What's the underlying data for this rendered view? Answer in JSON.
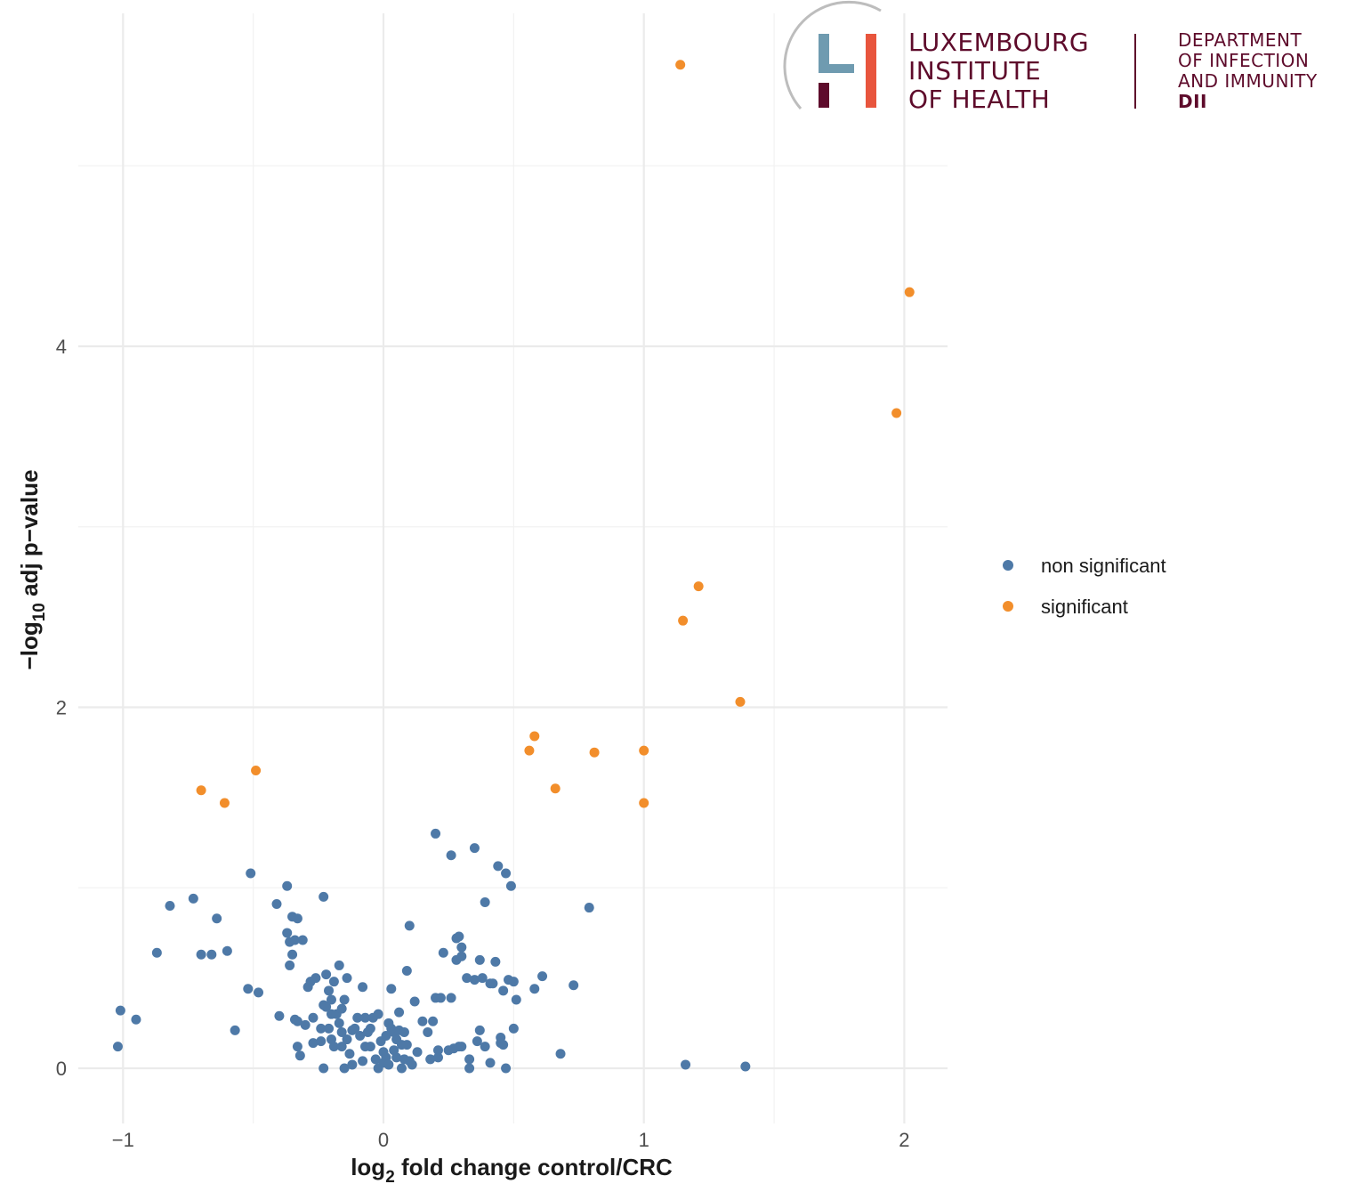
{
  "logo": {
    "org_lines": [
      "LUXEMBOURG",
      "INSTITUTE",
      "OF HEALTH"
    ],
    "dept_lines": [
      "DEPARTMENT",
      "OF INFECTION",
      "AND IMMUNITY"
    ],
    "dept_abbr": "DII",
    "colors": {
      "text": "#5e0b2b",
      "bar_blue": "#6f9bb0",
      "bar_red": "#e8553d",
      "bar_dark": "#5e0b2b",
      "arc": "#bdbdbd"
    }
  },
  "chart_data": {
    "type": "scatter",
    "title": "",
    "xlabel_parts": {
      "pre": "log",
      "sub": "2",
      "post": " fold change control/CRC"
    },
    "ylabel_parts": {
      "pre": "−log",
      "sub": "10",
      "post": " adj p−value"
    },
    "xlim": [
      -1.17,
      2.17
    ],
    "ylim": [
      -0.3,
      5.6
    ],
    "x_ticks": [
      -1,
      0,
      1,
      2
    ],
    "x_tick_labels": [
      "−1",
      "0",
      "1",
      "2"
    ],
    "y_ticks": [
      0,
      2,
      4
    ],
    "y_tick_labels": [
      "0",
      "2",
      "4"
    ],
    "grid": true,
    "legend_position": "right",
    "series": [
      {
        "name": "non significant",
        "color": "#4e79a7",
        "points": [
          [
            -1.02,
            0.12
          ],
          [
            -1.01,
            0.32
          ],
          [
            -0.95,
            0.27
          ],
          [
            -0.87,
            0.64
          ],
          [
            -0.82,
            0.9
          ],
          [
            -0.73,
            0.94
          ],
          [
            -0.7,
            0.63
          ],
          [
            -0.66,
            0.63
          ],
          [
            -0.64,
            0.83
          ],
          [
            -0.6,
            0.65
          ],
          [
            -0.57,
            0.21
          ],
          [
            -0.52,
            0.44
          ],
          [
            -0.51,
            1.08
          ],
          [
            -0.48,
            0.42
          ],
          [
            -0.41,
            0.91
          ],
          [
            -0.4,
            0.29
          ],
          [
            -0.37,
            1.01
          ],
          [
            -0.37,
            0.75
          ],
          [
            -0.36,
            0.7
          ],
          [
            -0.36,
            0.57
          ],
          [
            -0.35,
            0.63
          ],
          [
            -0.35,
            0.84
          ],
          [
            -0.34,
            0.27
          ],
          [
            -0.34,
            0.71
          ],
          [
            -0.33,
            0.12
          ],
          [
            -0.33,
            0.26
          ],
          [
            -0.33,
            0.83
          ],
          [
            -0.32,
            0.07
          ],
          [
            -0.31,
            0.71
          ],
          [
            -0.3,
            0.24
          ],
          [
            -0.29,
            0.45
          ],
          [
            -0.28,
            0.48
          ],
          [
            -0.27,
            0.28
          ],
          [
            -0.27,
            0.14
          ],
          [
            -0.26,
            0.5
          ],
          [
            -0.24,
            0.15
          ],
          [
            -0.24,
            0.22
          ],
          [
            -0.23,
            0.35
          ],
          [
            -0.23,
            0.95
          ],
          [
            -0.23,
            0.0
          ],
          [
            -0.22,
            0.52
          ],
          [
            -0.22,
            0.34
          ],
          [
            -0.21,
            0.22
          ],
          [
            -0.21,
            0.43
          ],
          [
            -0.2,
            0.16
          ],
          [
            -0.2,
            0.3
          ],
          [
            -0.2,
            0.38
          ],
          [
            -0.19,
            0.48
          ],
          [
            -0.19,
            0.12
          ],
          [
            -0.18,
            0.3
          ],
          [
            -0.17,
            0.57
          ],
          [
            -0.17,
            0.25
          ],
          [
            -0.16,
            0.33
          ],
          [
            -0.16,
            0.12
          ],
          [
            -0.16,
            0.2
          ],
          [
            -0.15,
            0.38
          ],
          [
            -0.15,
            0.0
          ],
          [
            -0.14,
            0.5
          ],
          [
            -0.14,
            0.16
          ],
          [
            -0.13,
            0.08
          ],
          [
            -0.12,
            0.21
          ],
          [
            -0.12,
            0.02
          ],
          [
            -0.11,
            0.22
          ],
          [
            -0.1,
            0.28
          ],
          [
            -0.09,
            0.18
          ],
          [
            -0.08,
            0.04
          ],
          [
            -0.08,
            0.45
          ],
          [
            -0.07,
            0.12
          ],
          [
            -0.07,
            0.28
          ],
          [
            -0.06,
            0.2
          ],
          [
            -0.05,
            0.22
          ],
          [
            -0.05,
            0.12
          ],
          [
            -0.04,
            0.28
          ],
          [
            -0.03,
            0.05
          ],
          [
            -0.02,
            0.3
          ],
          [
            -0.02,
            0.0
          ],
          [
            -0.01,
            0.15
          ],
          [
            0.0,
            0.09
          ],
          [
            0.0,
            0.03
          ],
          [
            0.01,
            0.06
          ],
          [
            0.01,
            0.18
          ],
          [
            0.02,
            0.25
          ],
          [
            0.02,
            0.02
          ],
          [
            0.03,
            0.44
          ],
          [
            0.03,
            0.22
          ],
          [
            0.04,
            0.1
          ],
          [
            0.04,
            0.2
          ],
          [
            0.05,
            0.16
          ],
          [
            0.05,
            0.06
          ],
          [
            0.06,
            0.31
          ],
          [
            0.06,
            0.21
          ],
          [
            0.07,
            0.0
          ],
          [
            0.07,
            0.13
          ],
          [
            0.08,
            0.2
          ],
          [
            0.08,
            0.05
          ],
          [
            0.09,
            0.54
          ],
          [
            0.09,
            0.13
          ],
          [
            0.1,
            0.79
          ],
          [
            0.1,
            0.04
          ],
          [
            0.11,
            0.02
          ],
          [
            0.12,
            0.37
          ],
          [
            0.13,
            0.09
          ],
          [
            0.15,
            0.26
          ],
          [
            0.17,
            0.2
          ],
          [
            0.18,
            0.05
          ],
          [
            0.19,
            0.26
          ],
          [
            0.2,
            1.3
          ],
          [
            0.2,
            0.39
          ],
          [
            0.21,
            0.06
          ],
          [
            0.21,
            0.1
          ],
          [
            0.22,
            0.39
          ],
          [
            0.23,
            0.64
          ],
          [
            0.25,
            0.1
          ],
          [
            0.26,
            1.18
          ],
          [
            0.26,
            0.39
          ],
          [
            0.27,
            0.11
          ],
          [
            0.28,
            0.72
          ],
          [
            0.28,
            0.6
          ],
          [
            0.29,
            0.12
          ],
          [
            0.29,
            0.73
          ],
          [
            0.3,
            0.62
          ],
          [
            0.3,
            0.12
          ],
          [
            0.3,
            0.67
          ],
          [
            0.32,
            0.5
          ],
          [
            0.33,
            0.0
          ],
          [
            0.33,
            0.05
          ],
          [
            0.35,
            1.22
          ],
          [
            0.35,
            0.49
          ],
          [
            0.36,
            0.15
          ],
          [
            0.37,
            0.6
          ],
          [
            0.37,
            0.21
          ],
          [
            0.38,
            0.5
          ],
          [
            0.39,
            0.92
          ],
          [
            0.39,
            0.12
          ],
          [
            0.41,
            0.47
          ],
          [
            0.41,
            0.03
          ],
          [
            0.42,
            0.47
          ],
          [
            0.43,
            0.59
          ],
          [
            0.44,
            1.12
          ],
          [
            0.45,
            0.17
          ],
          [
            0.45,
            0.14
          ],
          [
            0.46,
            0.43
          ],
          [
            0.46,
            0.13
          ],
          [
            0.47,
            0.0
          ],
          [
            0.47,
            1.08
          ],
          [
            0.48,
            0.49
          ],
          [
            0.49,
            1.01
          ],
          [
            0.5,
            0.48
          ],
          [
            0.5,
            0.22
          ],
          [
            0.51,
            0.38
          ],
          [
            0.58,
            0.44
          ],
          [
            0.61,
            0.51
          ],
          [
            0.68,
            0.08
          ],
          [
            0.73,
            0.46
          ],
          [
            0.79,
            0.89
          ],
          [
            1.16,
            0.02
          ],
          [
            1.39,
            0.01
          ]
        ]
      },
      {
        "name": "significant",
        "color": "#f28e2b",
        "points": [
          [
            -0.7,
            1.54
          ],
          [
            -0.61,
            1.47
          ],
          [
            -0.49,
            1.65
          ],
          [
            0.56,
            1.76
          ],
          [
            0.58,
            1.84
          ],
          [
            0.66,
            1.55
          ],
          [
            0.81,
            1.75
          ],
          [
            1.0,
            1.76
          ],
          [
            1.0,
            1.47
          ],
          [
            1.14,
            5.56
          ],
          [
            1.15,
            2.48
          ],
          [
            1.21,
            2.67
          ],
          [
            1.37,
            2.03
          ],
          [
            1.97,
            3.63
          ],
          [
            2.02,
            4.3
          ]
        ]
      }
    ]
  }
}
